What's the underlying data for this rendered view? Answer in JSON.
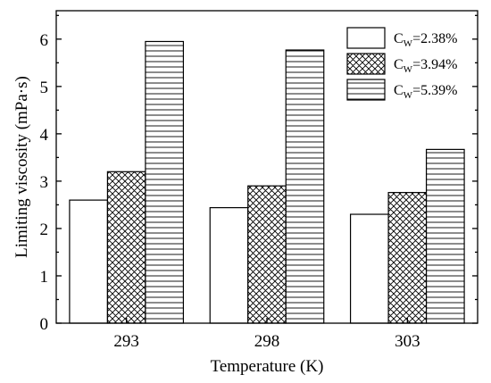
{
  "chart_data": {
    "type": "bar",
    "xlabel": "Temperature (K)",
    "ylabel": "Limiting viscosity (mPa·s)",
    "categories": [
      "293",
      "298",
      "303"
    ],
    "yticks": [
      "0",
      "1",
      "2",
      "3",
      "4",
      "5",
      "6"
    ],
    "ylim": [
      0,
      6.6
    ],
    "grid": false,
    "legend_position": "top-right",
    "series": [
      {
        "name_main": "C",
        "name_sub": "W",
        "name_rest": "=2.38%",
        "pattern": "none",
        "values": [
          2.6,
          2.44,
          2.3
        ]
      },
      {
        "name_main": "C",
        "name_sub": "W",
        "name_rest": "=3.94%",
        "pattern": "crosshatch",
        "values": [
          3.2,
          2.9,
          2.76
        ]
      },
      {
        "name_main": "C",
        "name_sub": "W",
        "name_rest": "=5.39%",
        "pattern": "horizontal",
        "values": [
          5.95,
          5.77,
          3.67
        ]
      }
    ]
  }
}
